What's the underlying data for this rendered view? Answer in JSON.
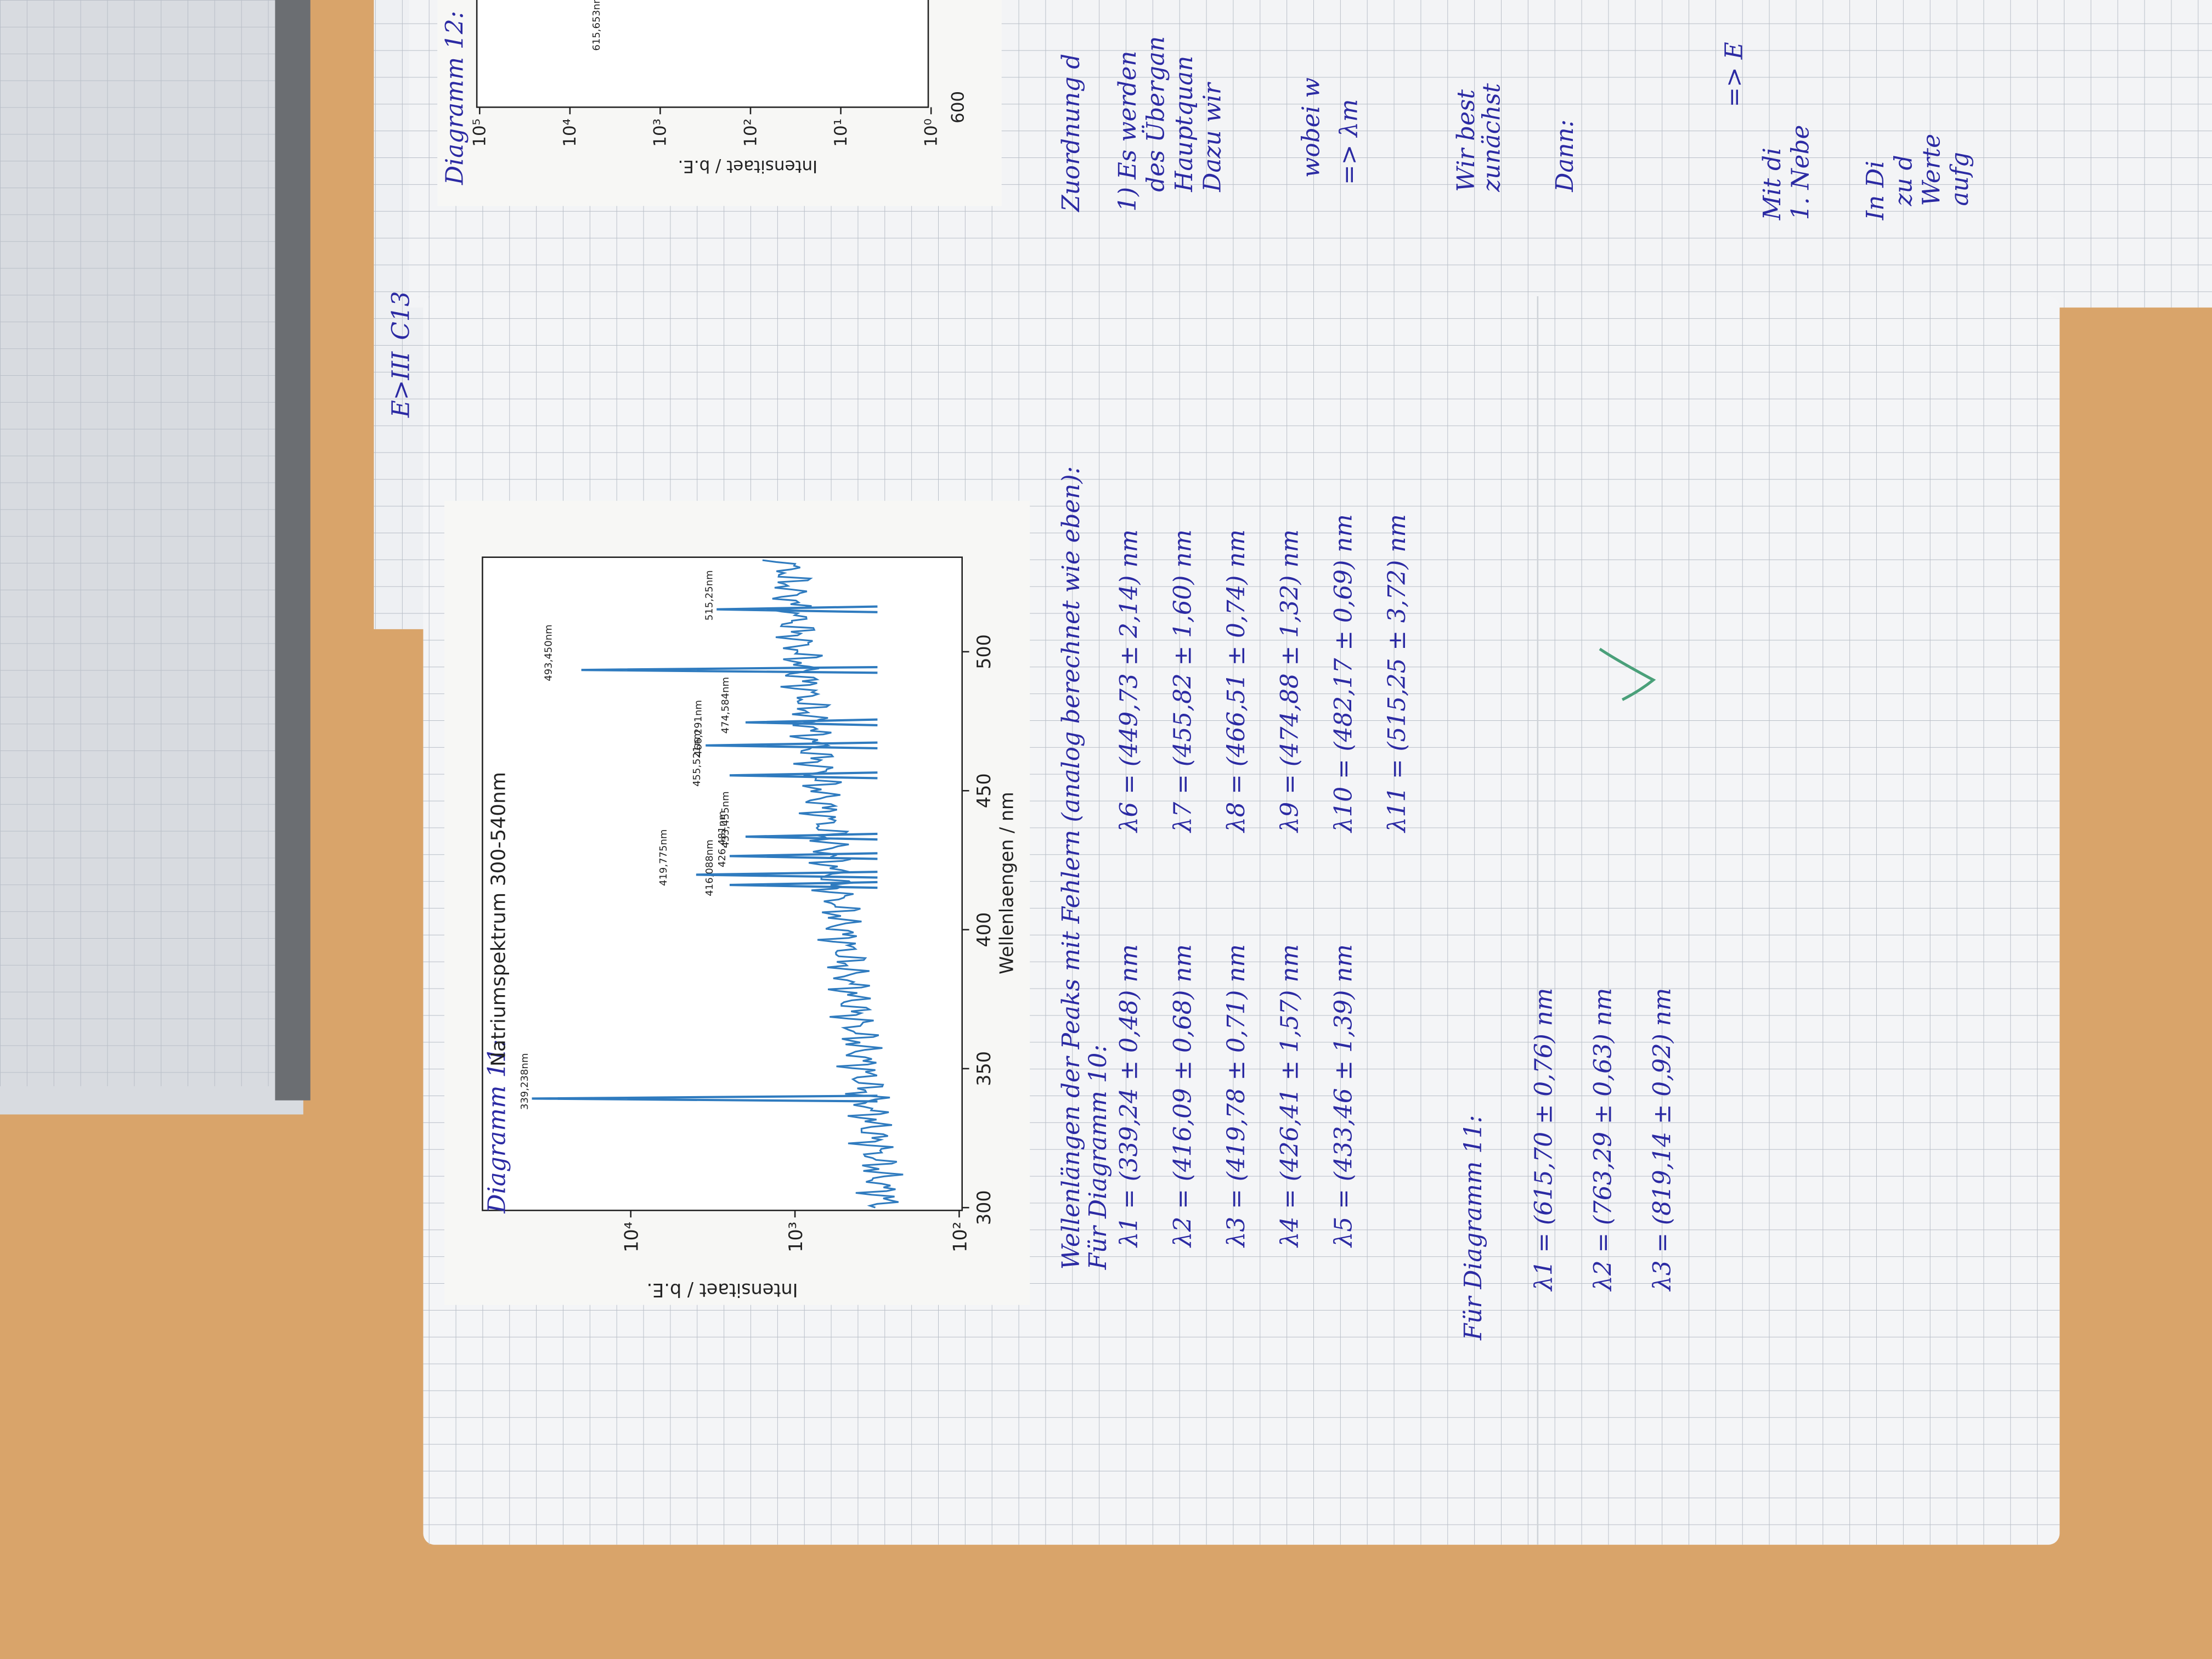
{
  "margin_notes": [
    "E>III",
    "C13"
  ],
  "diagram_11": {
    "label": "Diagramm 11:",
    "title": "Natriumspektrum 300-540nm",
    "xlabel": "Wellenlaengen / nm",
    "ylabel": "Intensitaet / b.E.",
    "xlim": [
      299,
      534
    ],
    "xticks": [
      300,
      350,
      400,
      450,
      500
    ],
    "ylim": [
      96,
      80000
    ],
    "log_y": true,
    "yticks": [
      {
        "value": 100,
        "label": "10²"
      },
      {
        "value": 1000,
        "label": "10³"
      },
      {
        "value": 10000,
        "label": "10⁴"
      }
    ],
    "color": "#2f7bbf",
    "peaks": [
      {
        "wavelength": 339.24,
        "intensity": 40000,
        "label": "339,238nm"
      },
      {
        "wavelength": 416.09,
        "intensity": 2500,
        "label": "416,088nm"
      },
      {
        "wavelength": 419.78,
        "intensity": 4000,
        "label": "419,775nm"
      },
      {
        "wavelength": 426.48,
        "intensity": 2500,
        "label": "426,481nm"
      },
      {
        "wavelength": 433.46,
        "intensity": 2000,
        "label": "433,455nm"
      },
      {
        "wavelength": 455.52,
        "intensity": 2500,
        "label": "455,521nm"
      },
      {
        "wavelength": 466.29,
        "intensity": 3500,
        "label": "466,291nm"
      },
      {
        "wavelength": 474.58,
        "intensity": 2000,
        "label": "474,584nm"
      },
      {
        "wavelength": 493.45,
        "intensity": 20000,
        "label": "493,450nm"
      },
      {
        "wavelength": 515.25,
        "intensity": 3000,
        "label": "515,25nm"
      }
    ]
  },
  "notes": {
    "heading": "Wellenlängen der Peaks mit Fehlern (analog berechnet wie eben):",
    "diagram_10_heading": "Für Diagramm 10:",
    "diagram_10_left": [
      "λ1 = (339,24 ± 0,48) nm",
      "λ2 = (416,09 ± 0,68) nm",
      "λ3 = (419,78 ± 0,71) nm",
      "λ4 = (426,41 ± 1,57) nm",
      "λ5 = (433,46 ± 1,39) nm"
    ],
    "diagram_10_right": [
      "λ6 = (449,73 ± 2,14) nm",
      "λ7 = (455,82 ± 1,60) nm",
      "λ8 = (466,51 ± 0,74) nm",
      "λ9 = (474,88 ± 1,32) nm",
      "λ10 = (482,17 ± 0,69) nm",
      "λ11 = (515,25 ± 3,72) nm"
    ],
    "diagram_11_heading": "Für Diagramm 11:",
    "diagram_11_lines": [
      "λ1 = (615,70 ± 0,76) nm",
      "λ2 = (763,29 ± 0,63) nm",
      "λ3 = (819,14 ± 0,92) nm"
    ]
  },
  "right_page": {
    "diagram_label": "Diagramm 12:",
    "ylabel": "Intensitaet / b.E.",
    "yticks": [
      {
        "value": 100000,
        "label": "10⁵"
      },
      {
        "value": 10000,
        "label": "10⁴"
      },
      {
        "value": 1000,
        "label": "10³"
      },
      {
        "value": 100,
        "label": "10²"
      },
      {
        "value": 10,
        "label": "10¹"
      },
      {
        "value": 1,
        "label": "10⁰"
      }
    ],
    "xtick": 600,
    "peak_label": "615,653nm",
    "lines": [
      "Zuordnung d",
      "1) Es werden",
      "des Übergan",
      "Hauptquan",
      "Dazu wir",
      "wobei w",
      "=> λm",
      "Wir best",
      "zunächst",
      "Dann:",
      "=> E",
      "Mit di",
      "1. Nebe",
      "In Di",
      "zu d",
      "Werte",
      "aufg"
    ]
  }
}
